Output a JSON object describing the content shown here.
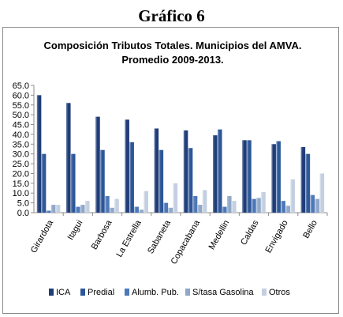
{
  "figure_label": "Gráfico 6",
  "chart_data": {
    "type": "bar",
    "title_lines": [
      "Composición Tributos Totales. Municipios del AMVA.",
      "Promedio 2009-2013."
    ],
    "categories": [
      "Girardota",
      "Itagui",
      "Barbosa",
      "La Estrella",
      "Sabaneta",
      "Copacabana",
      "Medellin",
      "Caldas",
      "Envigado",
      "Bello"
    ],
    "series": [
      {
        "name": "ICA",
        "values": [
          60,
          56,
          49,
          47.5,
          43,
          42,
          39.5,
          37,
          35,
          33.5
        ],
        "color": "#1f3d78"
      },
      {
        "name": "Predial",
        "values": [
          30,
          30,
          32,
          36,
          32,
          33,
          42.5,
          37,
          36.5,
          30
        ],
        "color": "#2d5797"
      },
      {
        "name": "Alumb. Pub.",
        "values": [
          1,
          3,
          8.5,
          3,
          5,
          8.5,
          3,
          7,
          6,
          9
        ],
        "color": "#4c78b8"
      },
      {
        "name": "S/tasa Gasolina",
        "values": [
          4,
          4,
          2.5,
          1.5,
          2.5,
          4,
          8.5,
          7.5,
          3.5,
          7
        ],
        "color": "#8fa7c9"
      },
      {
        "name": "Otros",
        "values": [
          4,
          6,
          7,
          11,
          15,
          11.5,
          6,
          10.5,
          17,
          20
        ],
        "color": "#c3cfe1"
      }
    ],
    "yticks": [
      "0.0",
      "5.0",
      "10.0",
      "15.0",
      "20.0",
      "25.0",
      "30.0",
      "35.0",
      "40.0",
      "45.0",
      "50.0",
      "55.0",
      "60.0",
      "65.0"
    ],
    "ylim": [
      0,
      65
    ],
    "grid": false,
    "legend_position": "bottom"
  }
}
